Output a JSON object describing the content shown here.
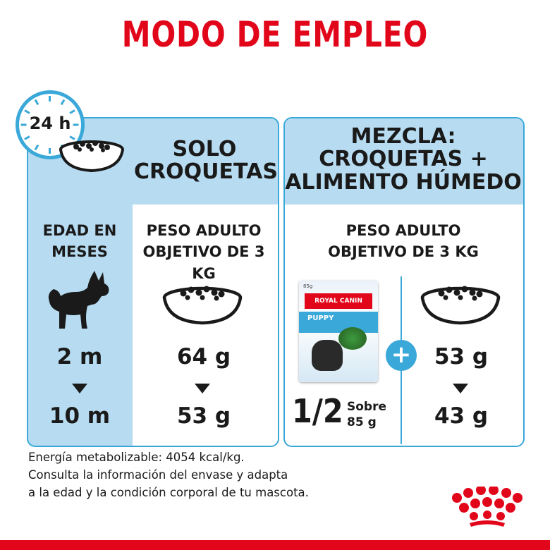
{
  "title": "MODO DE EMPLEO",
  "clock": {
    "label": "24 h"
  },
  "left_panel": {
    "heading_lines": [
      "SOLO",
      "CROQUETAS"
    ],
    "age_heading_lines": [
      "EDAD EN",
      "MESES"
    ],
    "weight_heading_lines": [
      "PESO ADULTO",
      "OBJETIVO DE 3 KG"
    ],
    "age_from": "2 m",
    "age_to": "10 m",
    "dry_from": "64 g",
    "dry_to": "53 g"
  },
  "right_panel": {
    "heading_lines": [
      "MEZCLA:",
      "CROQUETAS +",
      "ALIMENTO HÚMEDO"
    ],
    "weight_heading_lines": [
      "PESO ADULTO",
      "OBJETIVO DE 3 KG"
    ],
    "pouch_fraction": "1/2",
    "pouch_unit_lines": [
      "Sobre",
      "85 g"
    ],
    "dry_from": "53 g",
    "dry_to": "43 g",
    "plus_symbol": "+"
  },
  "pouch_label": {
    "brand": "ROYAL CANIN",
    "variant": "PUPPY",
    "size": "85g"
  },
  "footer": {
    "lines": [
      "Energía metabolizable: 4054 kcal/kg.",
      "Consulta la información del envase y adapta",
      "a la edad y la condición corporal de tu mascota."
    ]
  },
  "colors": {
    "brand_red": "#e2061b",
    "accent_blue": "#3aa8d8",
    "panel_blue": "#b7dcf1"
  },
  "icons": [
    "clock-icon",
    "food-bowl-icon",
    "dog-silhouette-icon",
    "arrow-down-icon",
    "plus-icon",
    "wet-food-pouch-icon",
    "royal-canin-crown-logo"
  ]
}
